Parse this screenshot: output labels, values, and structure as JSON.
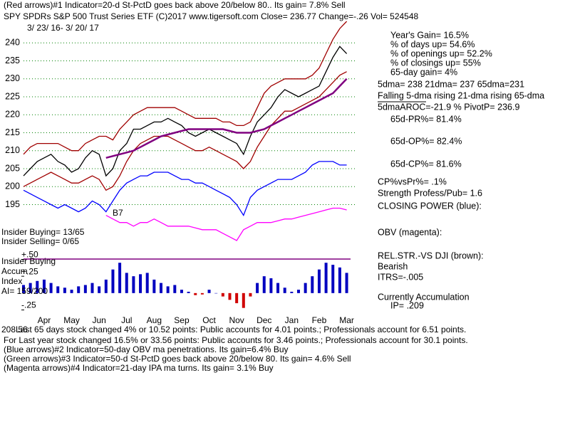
{
  "chart_data": {
    "type": "line",
    "annotations": [
      "(Red arrows)#1 Indicator=20-d St-PctD goes back above 20/below 80.. Its gain= 7.8% Sell",
      "SPY   SPDRs S&P 500 Trust Series ETF  (C)2017 www.tigersoft.com      Close= 236.77  Change=-.26 Vol= 524548",
      "3/ 23/ 16- 3/ 20/ 17",
      "Year's Gain= 16.5%",
      "% of days up= 54.6%",
      "% of openings up= 52.2%",
      "% of closings up= 55%",
      "65-day gain= 4%",
      "5dma= 238 21dma= 237 65dma=231",
      "Falling 5-dma  rising 21-dma  rising 65-dma",
      "5dmaAROC=-21.9 %  PivotP= 236.9",
      "65d-PR%= 81.4%",
      "65d-OP%= 82.4%",
      "65d-CP%= 81.6%",
      "CP%vsPr%=  .1%",
      "Strength Profess/Pub= 1.6",
      "CLOSING POWER (blue):",
      "OBV (magenta):",
      "REL.STR.-VS DJI (brown):",
      "Bearish",
      "ITRS=-.005",
      "Currently Accumulation",
      "IP=  .209",
      "B7",
      "Insider Buying= 13/65",
      "Insider Selling= 0/65",
      "Insider Buying",
      "Accum",
      "Index",
      "AI= 159/200",
      "208.56",
      "Last 65 days stock changed  4% or  10.52 points:  Public accounts for  4.01 points.;  Professionals account for  6.51 points.",
      "For Last year stock changed  16.5% or  33.56 points:  Public accounts for  3.46 points.;  Professionals account for  30.1 points.",
      "(Blue arrows)#2 Indicator=50-day OBV ma penetrations. Its gain=6.4% Buy",
      "(Green arrows)#3 Indicator=50-d St-PctD goes back above 20/below 80. Its gain= 4.6% Sell",
      "(Magenta arrows)#4 Indicator=21-day IPA ma turns. Its gain= 3.1% Buy"
    ],
    "categories": [
      null,
      null,
      null,
      "Apr",
      null,
      null,
      null,
      "May",
      null,
      null,
      null,
      "Jun",
      null,
      null,
      null,
      "Jul",
      null,
      null,
      null,
      "Aug",
      null,
      null,
      null,
      "Sep",
      null,
      null,
      null,
      "Oct",
      null,
      null,
      null,
      "Nov",
      null,
      null,
      null,
      "Dec",
      null,
      null,
      null,
      "Jan",
      null,
      null,
      null,
      "Feb",
      null,
      null,
      null,
      "Mar"
    ],
    "ylim": [
      184,
      246
    ],
    "yticks": [
      195,
      200,
      205,
      210,
      215,
      220,
      225,
      230,
      235,
      240
    ],
    "grid": true,
    "series": [
      {
        "color": "#000000",
        "values": [
          203,
          205,
          207,
          208,
          209,
          207,
          206,
          204,
          205,
          208,
          210,
          209,
          203,
          205,
          210,
          212,
          216,
          216,
          217,
          218,
          218,
          219,
          218,
          217,
          215,
          214,
          215,
          216,
          215,
          214,
          213,
          212,
          209,
          214,
          218,
          220,
          222,
          225,
          227,
          226,
          225,
          226,
          227,
          228,
          232,
          236,
          239,
          237
        ]
      },
      {
        "color": "#a00000",
        "values": [
          209,
          211,
          212,
          212,
          212,
          212,
          211,
          210,
          210,
          212,
          213,
          214,
          214,
          213,
          216,
          218,
          220,
          221,
          222,
          222,
          222,
          222,
          222,
          221,
          220,
          219,
          219,
          219,
          219,
          218,
          218,
          217,
          217,
          218,
          222,
          226,
          228,
          229,
          230,
          230,
          230,
          230,
          231,
          233,
          237,
          241,
          244,
          246
        ]
      },
      {
        "color": "#a00000",
        "values": [
          200,
          201,
          202,
          203,
          204,
          203,
          202,
          201,
          201,
          202,
          203,
          202,
          199,
          200,
          203,
          207,
          210,
          212,
          213,
          214,
          214,
          214,
          213,
          212,
          211,
          210,
          210,
          211,
          210,
          209,
          208,
          207,
          205,
          207,
          211,
          214,
          217,
          219,
          221,
          221,
          222,
          223,
          224,
          225,
          227,
          229,
          231,
          232
        ]
      },
      {
        "color": "#800080",
        "values": [
          null,
          null,
          null,
          null,
          null,
          null,
          null,
          null,
          null,
          null,
          null,
          null,
          208,
          208.5,
          209,
          209.5,
          210,
          211,
          212,
          213,
          214,
          214.5,
          215,
          215.5,
          216,
          216,
          216,
          216,
          216,
          216,
          215.5,
          215,
          215,
          215,
          215.5,
          216,
          217,
          218,
          219,
          220,
          221,
          222,
          223,
          224,
          225,
          226,
          228,
          230
        ]
      },
      {
        "color": "#0000ff",
        "values": [
          199,
          198,
          197,
          196,
          195,
          194,
          195,
          194,
          193,
          194,
          196,
          195,
          193,
          196,
          199,
          201,
          202,
          203,
          203,
          204,
          204,
          204,
          203,
          202,
          202,
          201,
          201,
          200,
          199,
          198,
          197,
          195,
          192,
          197,
          199,
          200,
          201,
          202,
          202,
          202,
          203,
          204,
          206,
          207,
          207,
          207,
          206,
          206
        ]
      },
      {
        "color": "#ff00ff",
        "values": [
          null,
          null,
          null,
          null,
          null,
          null,
          null,
          null,
          null,
          null,
          null,
          null,
          192,
          191,
          190,
          190,
          189,
          190,
          190,
          191,
          190,
          189,
          189,
          189,
          189,
          188.5,
          188,
          188,
          188,
          187,
          186,
          185,
          188,
          189,
          190,
          190,
          190,
          190.5,
          191,
          191,
          191.5,
          192,
          192.5,
          193,
          193.5,
          194,
          194,
          193.5
        ]
      }
    ],
    "accum": {
      "type": "bar",
      "ylim": [
        -0.35,
        0.6
      ],
      "yticks": [
        {
          "value": 0.5,
          "label": "+.50"
        },
        {
          "value": 0.25,
          "label": "+.25"
        },
        {
          "value": -0.25,
          "label": "-.25"
        }
      ],
      "colors": [
        "#0000c0",
        "#d00000"
      ],
      "values": [
        0.12,
        0.15,
        0.18,
        0.2,
        0.15,
        0.1,
        0.08,
        0.05,
        0.1,
        0.12,
        0.15,
        0.1,
        0.2,
        0.35,
        0.45,
        0.3,
        0.25,
        0.28,
        0.3,
        0.2,
        0.15,
        0.1,
        0.12,
        0.05,
        0.02,
        -0.03,
        -0.02,
        0.05,
        0,
        -0.05,
        -0.1,
        -0.15,
        -0.22,
        -0.05,
        0.15,
        0.25,
        0.22,
        0.15,
        0.08,
        0.02,
        0.05,
        0.15,
        0.25,
        0.35,
        0.45,
        0.42,
        0.38,
        0.3
      ]
    }
  }
}
